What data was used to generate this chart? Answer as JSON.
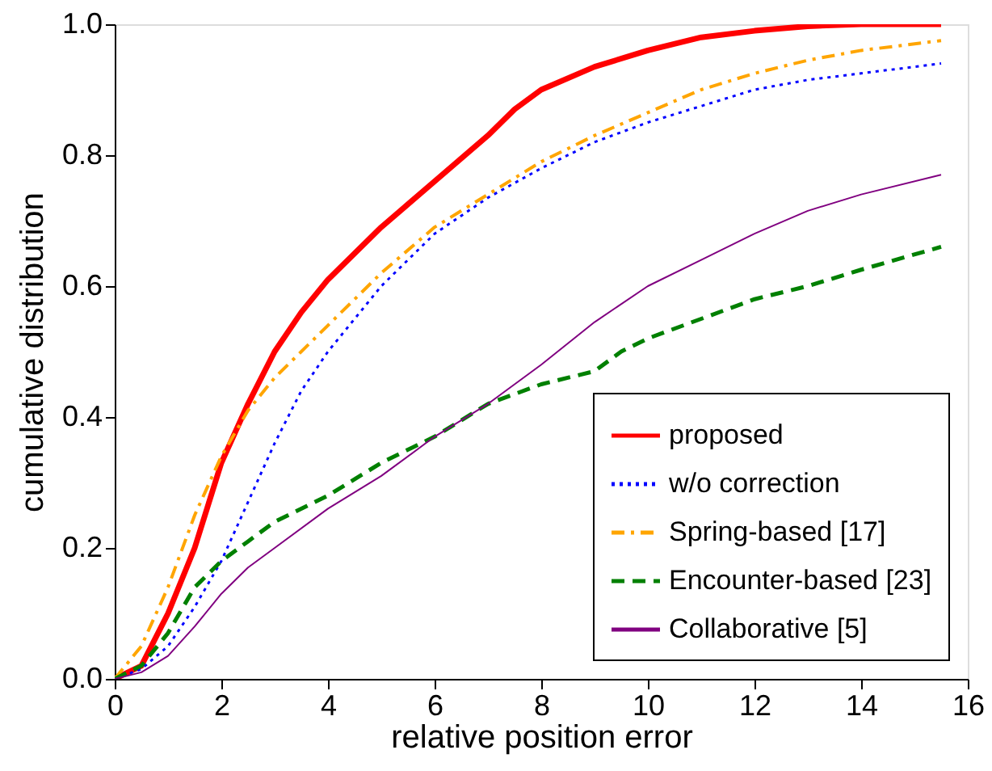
{
  "chart_data": {
    "type": "line",
    "xlabel": "relative position error",
    "ylabel": "cumulative distribution",
    "xlim": [
      0,
      16
    ],
    "ylim": [
      0,
      1.0
    ],
    "xticks": [
      0,
      2,
      4,
      6,
      8,
      10,
      12,
      14,
      16
    ],
    "yticks": [
      {
        "value": 0,
        "label": "0.0"
      },
      0.2,
      0.4,
      0.6,
      0.8,
      {
        "value": 1,
        "label": "1.0"
      }
    ],
    "grid": false,
    "legend": "bottom right",
    "marker": "none",
    "series": [
      {
        "name": "proposed",
        "color": "#ff0000",
        "line_style": "solid",
        "x": [
          0,
          0.5,
          1,
          1.5,
          2,
          2.5,
          3,
          3.5,
          4,
          5,
          6,
          7,
          7.5,
          8,
          9,
          10,
          11,
          12,
          13,
          14,
          15.5
        ],
        "values": [
          0,
          0.02,
          0.1,
          0.2,
          0.33,
          0.42,
          0.5,
          0.56,
          0.61,
          0.69,
          0.76,
          0.83,
          0.87,
          0.9,
          0.935,
          0.96,
          0.98,
          0.99,
          0.997,
          1.0,
          1.0
        ]
      },
      {
        "name": "w/o correction",
        "color": "#0000ff",
        "line_style": "dotted",
        "x": [
          0,
          0.5,
          1,
          1.5,
          2,
          2.5,
          3,
          3.5,
          4,
          5,
          6,
          7,
          8,
          9,
          10,
          11,
          12,
          13,
          14,
          15.5
        ],
        "values": [
          0,
          0.015,
          0.05,
          0.11,
          0.18,
          0.27,
          0.36,
          0.44,
          0.5,
          0.6,
          0.68,
          0.735,
          0.78,
          0.82,
          0.85,
          0.875,
          0.9,
          0.915,
          0.925,
          0.94
        ]
      },
      {
        "name": "Spring-based [17]",
        "color": "#ffa500",
        "line_style": "dashdot",
        "x": [
          0,
          0.5,
          1,
          1.5,
          2,
          2.5,
          3,
          3.5,
          4,
          5,
          6,
          7,
          8,
          9,
          10,
          11,
          12,
          13,
          14,
          15.5
        ],
        "values": [
          0,
          0.05,
          0.14,
          0.25,
          0.34,
          0.41,
          0.46,
          0.5,
          0.54,
          0.62,
          0.69,
          0.74,
          0.79,
          0.83,
          0.865,
          0.9,
          0.925,
          0.945,
          0.96,
          0.975
        ]
      },
      {
        "name": "Encounter-based [23]",
        "color": "#008000",
        "line_style": "dashed",
        "x": [
          0,
          0.5,
          1,
          1.5,
          2,
          2.5,
          3,
          4,
          5,
          6,
          7,
          8,
          9,
          9.5,
          10,
          11,
          12,
          13,
          14,
          15.5
        ],
        "values": [
          0,
          0.02,
          0.07,
          0.14,
          0.18,
          0.21,
          0.24,
          0.28,
          0.33,
          0.37,
          0.42,
          0.45,
          0.47,
          0.5,
          0.52,
          0.55,
          0.58,
          0.6,
          0.625,
          0.66
        ]
      },
      {
        "name": "Collaborative [5]",
        "color": "#800080",
        "line_style": "solid",
        "x": [
          0,
          0.5,
          1,
          1.5,
          2,
          2.5,
          3,
          4,
          5,
          6,
          7,
          8,
          9,
          10,
          11,
          12,
          13,
          14,
          15.5
        ],
        "values": [
          0,
          0.01,
          0.035,
          0.08,
          0.13,
          0.17,
          0.2,
          0.26,
          0.31,
          0.37,
          0.42,
          0.48,
          0.545,
          0.6,
          0.64,
          0.68,
          0.715,
          0.74,
          0.77
        ]
      }
    ]
  }
}
